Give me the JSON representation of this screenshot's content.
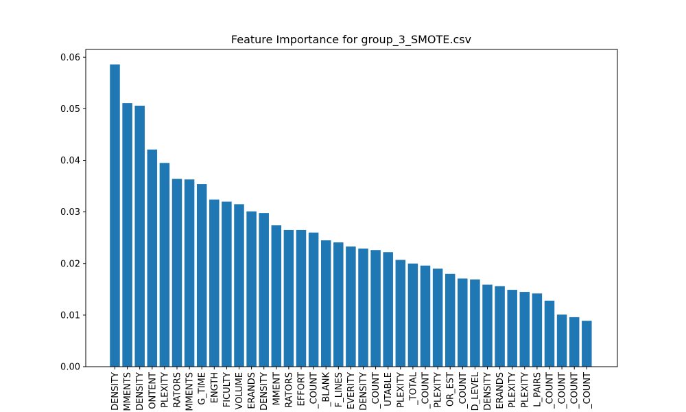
{
  "chart_data": {
    "type": "bar",
    "title": "Feature Importance for group_3_SMOTE.csv",
    "xlabel": "",
    "ylabel": "",
    "ylim": [
      0,
      0.0615
    ],
    "y_ticks": [
      "0.00",
      "0.01",
      "0.02",
      "0.03",
      "0.04",
      "0.05",
      "0.06"
    ],
    "y_tick_values": [
      0,
      0.01,
      0.02,
      0.03,
      0.04,
      0.05,
      0.06
    ],
    "bar_color": "#1f77b4",
    "grid": false,
    "categories": [
      "DENSITY",
      "MMENTS",
      "DENSITY",
      "ONTENT",
      "PLEXITY",
      "RATORS",
      "MMENTS",
      "G_TIME",
      "ENGTH",
      "FICULTY",
      "VOLUME",
      "ERANDS",
      "DENSITY",
      "MMENT",
      "RATORS",
      "EFFORT",
      "_COUNT",
      "_BLANK",
      "F_LINES",
      "EVERITY",
      "DENSITY",
      "_COUNT",
      "UTABLE",
      "PLEXITY",
      "_TOTAL",
      "_COUNT",
      "PLEXITY",
      "OR_EST",
      "_COUNT",
      "D_LEVEL",
      "DENSITY",
      "ERANDS",
      "PLEXITY",
      "PLEXITY",
      "L_PAIRS",
      "_COUNT",
      "_COUNT",
      "_COUNT",
      "_COUNT"
    ],
    "values": [
      0.0586,
      0.0511,
      0.0506,
      0.0421,
      0.0395,
      0.0364,
      0.0363,
      0.0354,
      0.0324,
      0.032,
      0.0315,
      0.0301,
      0.0298,
      0.0274,
      0.0265,
      0.0265,
      0.026,
      0.0245,
      0.0241,
      0.0233,
      0.0229,
      0.0226,
      0.0222,
      0.0207,
      0.02,
      0.0196,
      0.019,
      0.018,
      0.0171,
      0.0169,
      0.0159,
      0.0156,
      0.0149,
      0.0145,
      0.0142,
      0.0128,
      0.0101,
      0.0096,
      0.0089
    ]
  }
}
